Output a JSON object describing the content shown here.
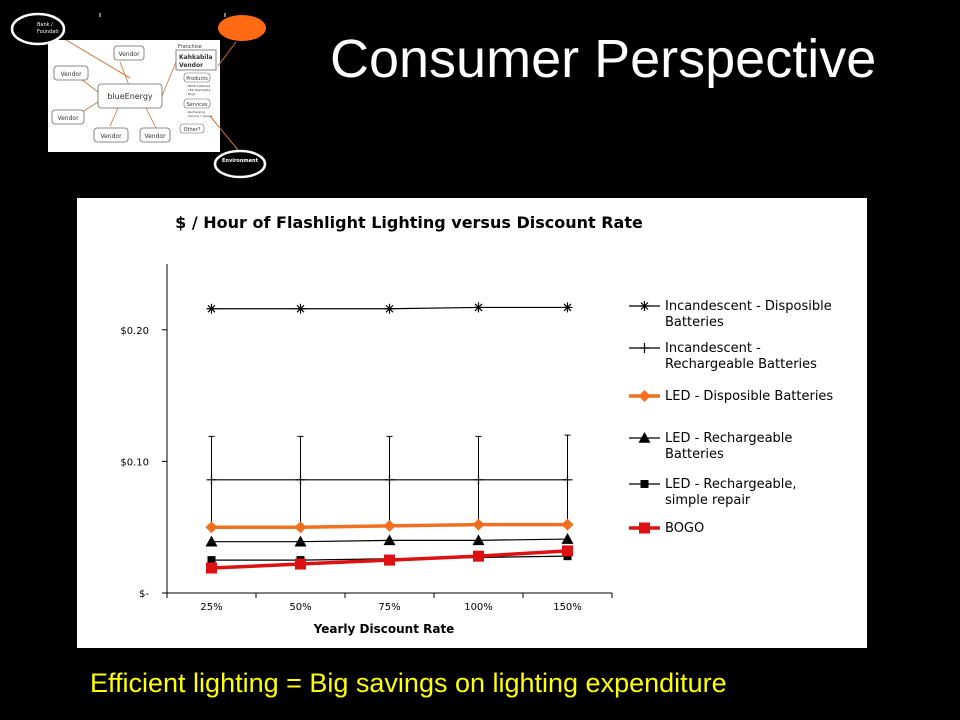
{
  "slide": {
    "title": "Consumer Perspective",
    "subtitle": "Efficient lighting = Big savings on lighting expenditure"
  },
  "diagram": {
    "hub": "blueEnergy",
    "vendors": [
      "Vendor",
      "Vendor",
      "Vendor",
      "Vendor",
      "Vendor",
      "Vendor"
    ],
    "franchise_label": "Franchise",
    "kahkabila": [
      "Kahkabila",
      "Vendor"
    ],
    "products_label": "Products",
    "products_items": [
      "- NiMH batteries",
      "- LED flashlights",
      "- Bogo"
    ],
    "services_label": "Services",
    "services_items": [
      "- Recharging",
      "- Service / repairs"
    ],
    "other_label": "Other?",
    "bank_label": [
      "Bank /",
      "Foundati"
    ],
    "environment_label": "Environment",
    "colors": {
      "ring_outline": "#ffffff",
      "connector": "#c87137",
      "orange_blob": "#ff6a13"
    }
  },
  "chart_data": {
    "type": "line",
    "title": "$ / Hour of Flashlight Lighting versus Discount Rate",
    "xlabel": "Yearly Discount Rate",
    "ylabel": "",
    "categories": [
      "25%",
      "50%",
      "75%",
      "100%",
      "150%"
    ],
    "ylim": [
      0,
      0.25
    ],
    "yticks": [
      0,
      0.1,
      0.2
    ],
    "ytick_labels": [
      "$-",
      "$0.10",
      "$0.20"
    ],
    "legend_position": "right",
    "grid": false,
    "series": [
      {
        "name": "Incandescent - Disposible Batteries",
        "legend_lines": [
          "Incandescent - Disposible",
          "Batteries"
        ],
        "values": [
          0.216,
          0.216,
          0.216,
          0.217,
          0.217
        ],
        "marker": "star",
        "color": "#000000",
        "width": 1.2
      },
      {
        "name": "Incandescent - Rechargeable Batteries",
        "legend_lines": [
          "Incandescent -",
          "Rechargeable Batteries"
        ],
        "values": [
          0.086,
          0.086,
          0.086,
          0.086,
          0.086
        ],
        "error": [
          0.033,
          0.033,
          0.033,
          0.033,
          0.034
        ],
        "marker": "plus",
        "color": "#000000",
        "width": 1.2
      },
      {
        "name": "LED - Disposible Batteries",
        "legend_lines": [
          "LED - Disposible Batteries"
        ],
        "values": [
          0.05,
          0.05,
          0.051,
          0.052,
          0.052
        ],
        "marker": "diamond",
        "color": "#f07020",
        "width": 3.5
      },
      {
        "name": "LED - Rechargeable Batteries",
        "legend_lines": [
          "LED - Rechargeable",
          "Batteries"
        ],
        "values": [
          0.039,
          0.039,
          0.04,
          0.04,
          0.041
        ],
        "marker": "triangle",
        "color": "#000000",
        "width": 1.2
      },
      {
        "name": "LED - Rechargeable, simple repair",
        "legend_lines": [
          "LED - Rechargeable,",
          "simple repair"
        ],
        "values": [
          0.025,
          0.025,
          0.026,
          0.027,
          0.028
        ],
        "marker": "square",
        "color": "#000000",
        "width": 1.2
      },
      {
        "name": "BOGO",
        "legend_lines": [
          "BOGO"
        ],
        "values": [
          0.019,
          0.022,
          0.025,
          0.028,
          0.032
        ],
        "marker": "square",
        "color": "#dd1111",
        "width": 3.5
      }
    ]
  }
}
